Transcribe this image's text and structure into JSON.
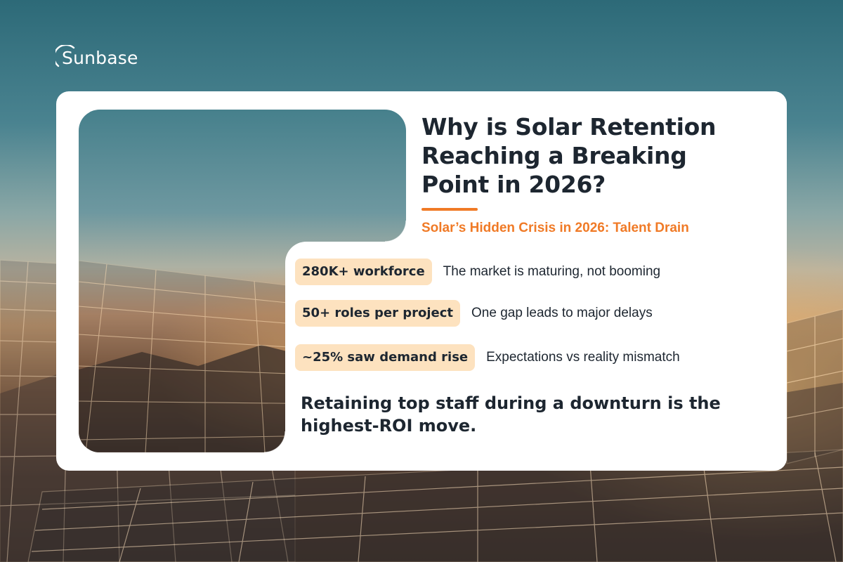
{
  "brand": {
    "name": "Sunbase",
    "icon": "sun-arc-icon",
    "accent_color": "#f07a26",
    "pill_color": "#fde2bf"
  },
  "card": {
    "title": "Why is Solar Retention Reaching a Breaking Point in 2026?",
    "subtitle": "Solar’s Hidden Crisis in 2026: Talent Drain",
    "stats": [
      {
        "highlight": "280K+ workforce",
        "description": "The market is maturing, not booming"
      },
      {
        "highlight": "50+ roles per project",
        "description": "One gap leads to major delays"
      },
      {
        "highlight": "~25% saw demand rise",
        "description": "Expectations vs reality mismatch"
      }
    ],
    "conclusion": "Retaining top staff during a downturn is the highest-ROI move."
  }
}
